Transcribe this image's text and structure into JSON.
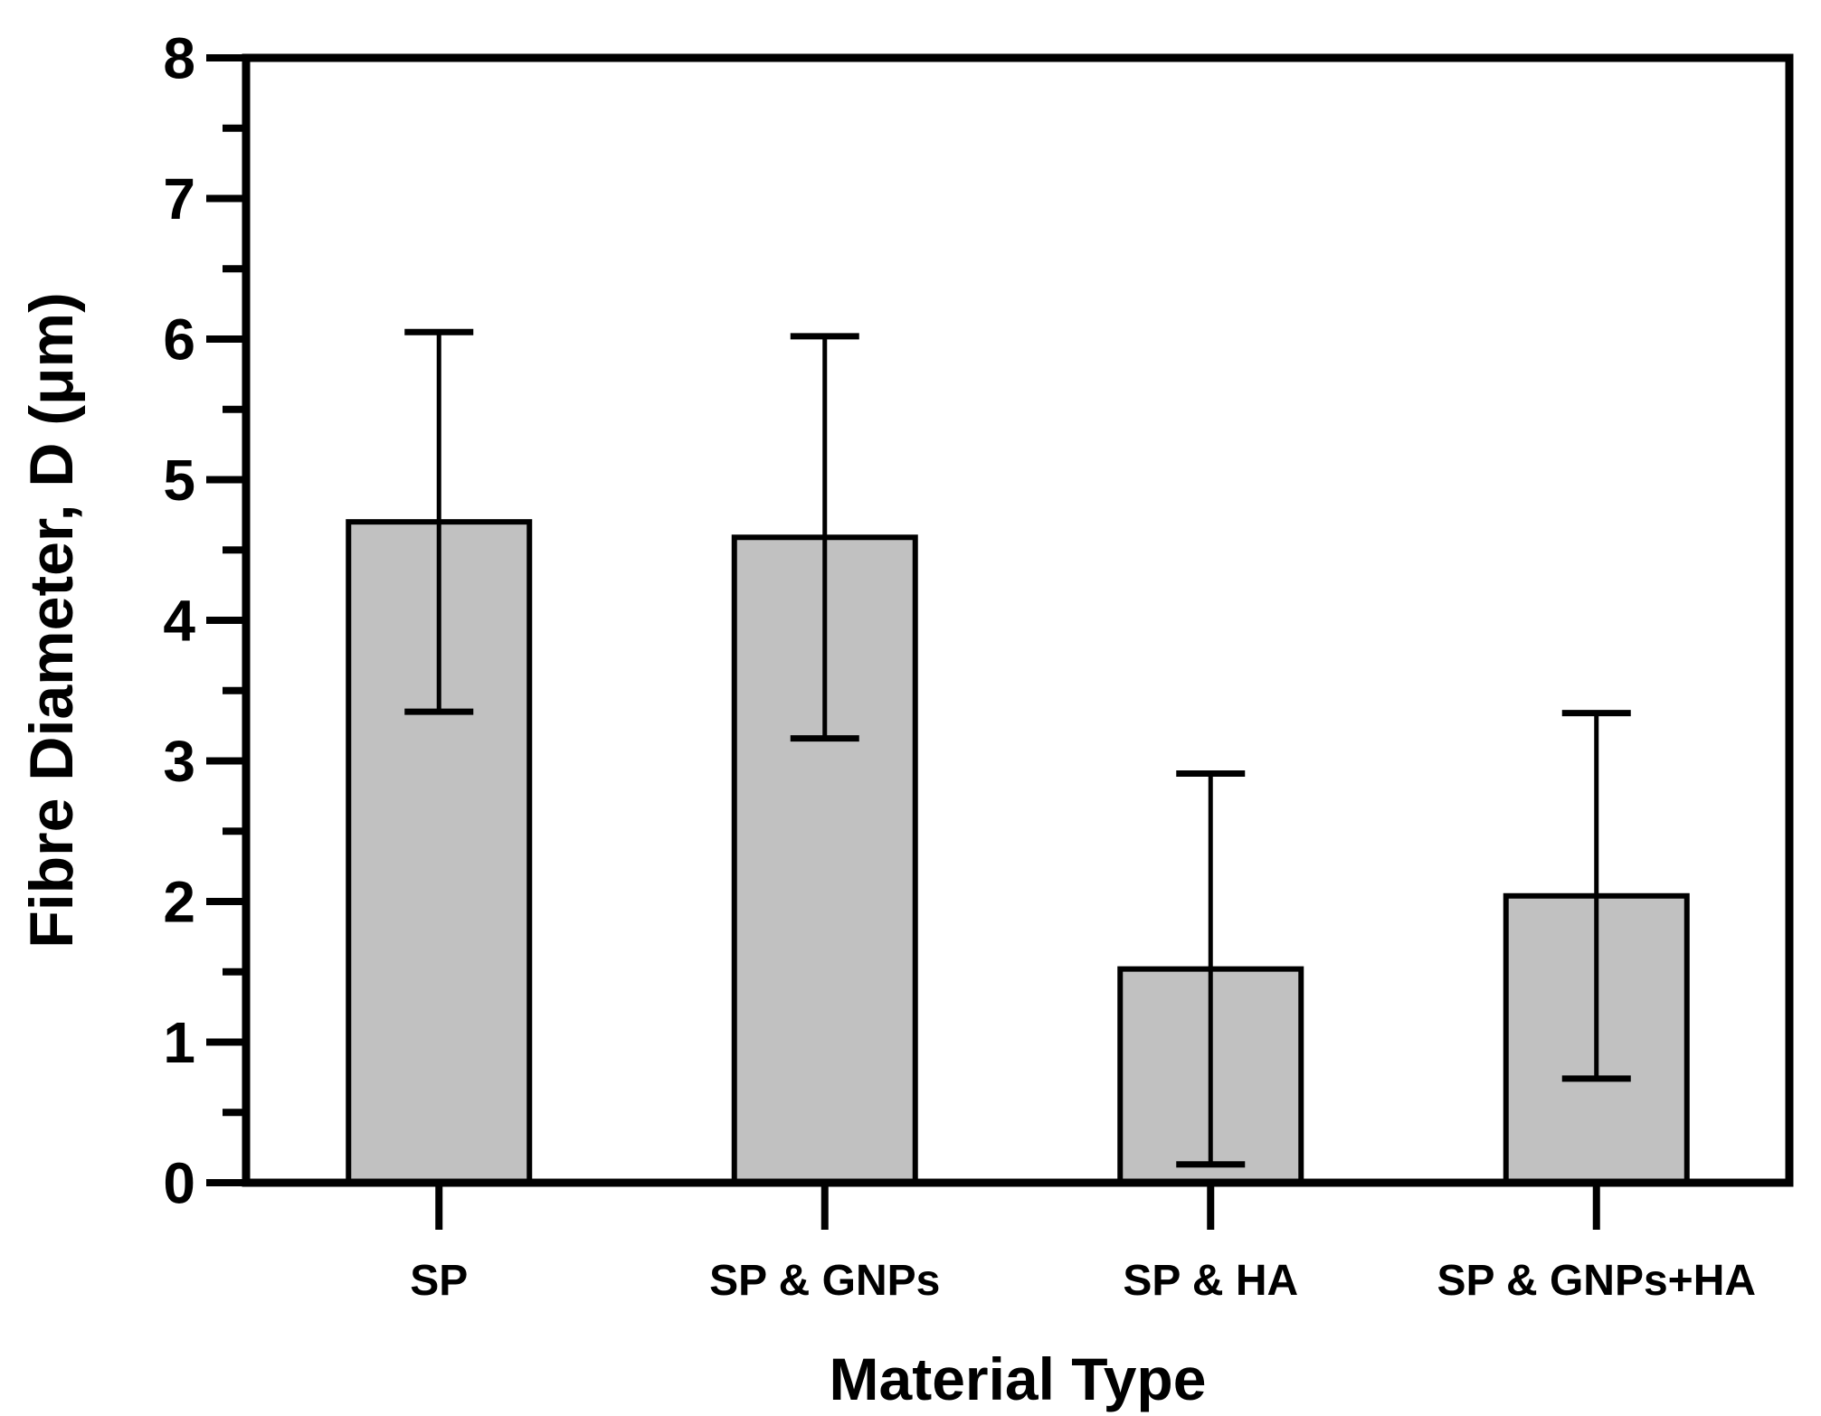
{
  "figure": {
    "background": "#ffffff",
    "bar_fill": "#c1c1c1",
    "bar_stroke": "#000000",
    "axis_color": "#000000"
  },
  "chart_data": {
    "type": "bar",
    "title": "",
    "xlabel": "Material Type",
    "ylabel": "Fibre Diameter, D (μm)",
    "categories": [
      "SP",
      "SP & GNPs",
      "SP & HA",
      "SP & GNPs+HA"
    ],
    "values": [
      4.7,
      4.59,
      1.52,
      2.04
    ],
    "errors": [
      1.35,
      1.43,
      1.39,
      1.3
    ],
    "error_caps": true,
    "ylim": [
      0,
      8
    ],
    "yticks": [
      0,
      1,
      2,
      3,
      4,
      5,
      6,
      7,
      8
    ],
    "yminor_step": 0.5,
    "grid": false,
    "legend": false,
    "frame": "full-box"
  }
}
